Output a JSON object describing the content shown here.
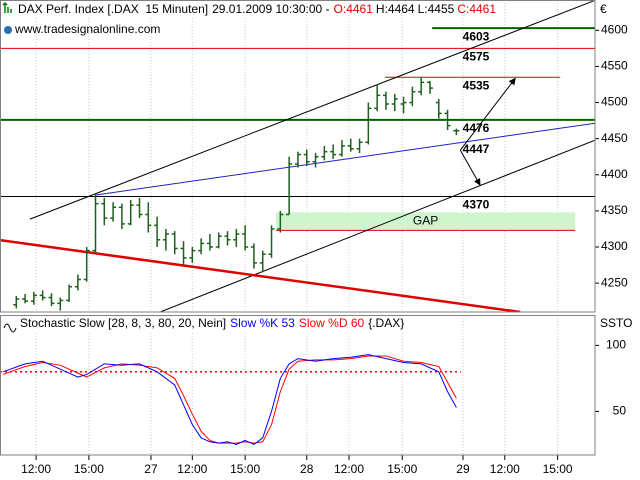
{
  "chart_data": [
    {
      "type": "ohlc",
      "title": "DAX Perf. Index [.DAX  15 Minuten]",
      "datetime": "29.01.2009 10:30:00 -",
      "last": {
        "open": "O:4461",
        "high": "H:4464",
        "low": "L:4455",
        "close": "C:4461"
      },
      "source": "www.tradesignalonline.com",
      "unit": "€",
      "color": "#1f5f1f",
      "x": [
        3,
        5,
        7,
        9,
        11,
        13,
        15,
        17,
        19,
        21,
        23,
        25,
        27,
        29,
        31,
        33,
        35,
        37,
        39,
        41,
        43,
        45,
        47,
        49,
        51,
        53,
        55,
        57,
        59,
        61,
        63,
        65,
        67,
        69,
        71,
        73,
        75,
        77,
        79,
        81,
        83,
        85,
        87,
        89,
        91,
        93,
        95,
        97,
        99,
        101,
        103
      ],
      "open": [
        4220,
        4228,
        4225,
        4233,
        4230,
        4222,
        4226,
        4245,
        4255,
        4295,
        4360,
        4340,
        4355,
        4332,
        4358,
        4345,
        4330,
        4310,
        4318,
        4298,
        4285,
        4295,
        4305,
        4300,
        4315,
        4310,
        4318,
        4300,
        4278,
        4290,
        4325,
        4345,
        4415,
        4428,
        4418,
        4425,
        4432,
        4428,
        4440,
        4436,
        4445,
        4492,
        4510,
        4498,
        4498,
        4500,
        4515,
        4528,
        4500,
        4485,
        4461
      ],
      "high": [
        4232,
        4235,
        4238,
        4240,
        4236,
        4230,
        4248,
        4262,
        4300,
        4372,
        4368,
        4362,
        4360,
        4365,
        4368,
        4362,
        4342,
        4325,
        4322,
        4308,
        4300,
        4312,
        4318,
        4320,
        4322,
        4325,
        4330,
        4305,
        4295,
        4330,
        4350,
        4425,
        4432,
        4435,
        4430,
        4440,
        4442,
        4448,
        4450,
        4450,
        4500,
        4525,
        4515,
        4512,
        4508,
        4522,
        4535,
        4530,
        4505,
        4490,
        4464
      ],
      "low": [
        4215,
        4222,
        4220,
        4226,
        4218,
        4212,
        4224,
        4240,
        4252,
        4290,
        4330,
        4335,
        4325,
        4330,
        4340,
        4320,
        4300,
        4295,
        4290,
        4275,
        4278,
        4290,
        4295,
        4298,
        4302,
        4300,
        4295,
        4270,
        4265,
        4285,
        4320,
        4345,
        4410,
        4412,
        4410,
        4420,
        4422,
        4425,
        4432,
        4430,
        4442,
        4488,
        4490,
        4488,
        4485,
        4495,
        4510,
        4512,
        4478,
        4462,
        4455
      ],
      "close": [
        4228,
        4225,
        4233,
        4230,
        4222,
        4226,
        4245,
        4255,
        4295,
        4360,
        4340,
        4355,
        4332,
        4358,
        4345,
        4330,
        4310,
        4318,
        4298,
        4285,
        4295,
        4305,
        4300,
        4315,
        4310,
        4318,
        4300,
        4278,
        4290,
        4325,
        4345,
        4415,
        4428,
        4418,
        4425,
        4432,
        4428,
        4440,
        4436,
        4445,
        4492,
        4510,
        4498,
        4505,
        4500,
        4515,
        4528,
        4520,
        4485,
        4468,
        4461
      ],
      "xlim": [
        -0.7,
        134.5
      ],
      "ylim": [
        4210,
        4642
      ],
      "yticks": [
        4250,
        4300,
        4350,
        4400,
        4450,
        4500,
        4550,
        4600
      ],
      "levels": [
        {
          "value": 4603,
          "color": "#006400",
          "x": [
            97.5,
            134.5
          ],
          "width": 2
        },
        {
          "value": 4575,
          "color": "#e00000",
          "x": [
            -0.7,
            134.5
          ],
          "width": 1
        },
        {
          "value": 4535,
          "color": "#e00000",
          "x": [
            86.8,
            126.6
          ],
          "width": 1
        },
        {
          "value": 4476,
          "color": "#006400",
          "x": [
            -0.7,
            134.5
          ],
          "width": 2
        },
        {
          "value": 4447,
          "color": "#0000e0"
        },
        {
          "value": 4370,
          "color": "#000000",
          "x": [
            -0.7,
            134.5
          ],
          "width": 1
        }
      ],
      "zone": {
        "label": "GAP",
        "low": 4323,
        "high": 4348,
        "x": [
          62,
          130
        ],
        "fill": "#cff5cf",
        "color": "#e00000"
      },
      "trendlines": [
        {
          "color": "#000000",
          "width": 1,
          "x": [
            6.1,
            134.5
          ],
          "y": [
            4338.6,
            4641.5
          ]
        },
        {
          "color": "#000000",
          "width": 1,
          "x": [
            35.7,
            134.5
          ],
          "y": [
            4210,
            4447.9
          ]
        },
        {
          "color": "#2020c0",
          "width": 1,
          "x": [
            20.9,
            134.5
          ],
          "y": [
            4371.8,
            4471.4
          ]
        },
        {
          "color": "#e00000",
          "width": 2.5,
          "x": [
            -0.7,
            117.5
          ],
          "y": [
            4309.5,
            4210
          ]
        }
      ],
      "arrows": [
        {
          "x": [
            103.9,
            116.4
          ],
          "y": [
            4434,
            4533.6
          ]
        },
        {
          "x": [
            103.9,
            108.4
          ],
          "y": [
            4434,
            4385.6
          ]
        }
      ]
    },
    {
      "type": "stochastic",
      "title": "Stochastic Slow [28, 8, 3, 80, 20, Nein]",
      "symbol": "{.DAX}",
      "label": "SSTO",
      "x": [
        0,
        5,
        9,
        13,
        17,
        19,
        23,
        27,
        31,
        35,
        39,
        41,
        43,
        45,
        47,
        49,
        51,
        53,
        55,
        57,
        59,
        61,
        63,
        65,
        67,
        71,
        75,
        79,
        83,
        87,
        91,
        95,
        99,
        101,
        103
      ],
      "series": [
        {
          "name": "Slow %K 53",
          "color": "#0000ff",
          "values": [
            80,
            86,
            88,
            82,
            76,
            78,
            86,
            85,
            86,
            80,
            70,
            55,
            40,
            30,
            27,
            26,
            27,
            25,
            28,
            25,
            30,
            50,
            75,
            86,
            90,
            88,
            90,
            91,
            93,
            90,
            87,
            86,
            80,
            65,
            53
          ]
        },
        {
          "name": "Slow %D 60",
          "color": "#ff0000",
          "values": [
            78,
            84,
            87,
            85,
            79,
            76,
            83,
            86,
            85,
            83,
            75,
            62,
            48,
            35,
            28,
            26,
            26,
            26,
            27,
            26,
            27,
            40,
            65,
            82,
            88,
            89,
            89,
            90,
            92,
            92,
            88,
            87,
            84,
            72,
            60
          ]
        }
      ],
      "band": {
        "value": 80,
        "color": "#ff0000",
        "x": [
          -0.7,
          104
        ]
      },
      "xlim": [
        -0.7,
        134.5
      ],
      "ylim": [
        17,
        123
      ],
      "yticks": [
        50,
        100
      ],
      "xticks": [
        {
          "value": 7.5,
          "label": "12:00"
        },
        {
          "value": 19.5,
          "label": "15:00"
        },
        {
          "value": 33.6,
          "label": "27"
        },
        {
          "value": 43,
          "label": "12:00"
        },
        {
          "value": 55,
          "label": "15:00"
        },
        {
          "value": 69,
          "label": "28"
        },
        {
          "value": 78.6,
          "label": "12:00"
        },
        {
          "value": 90.7,
          "label": "15:00"
        },
        {
          "value": 104.5,
          "label": "29"
        },
        {
          "value": 114,
          "label": "12:00"
        },
        {
          "value": 126,
          "label": "15:00"
        }
      ]
    }
  ]
}
